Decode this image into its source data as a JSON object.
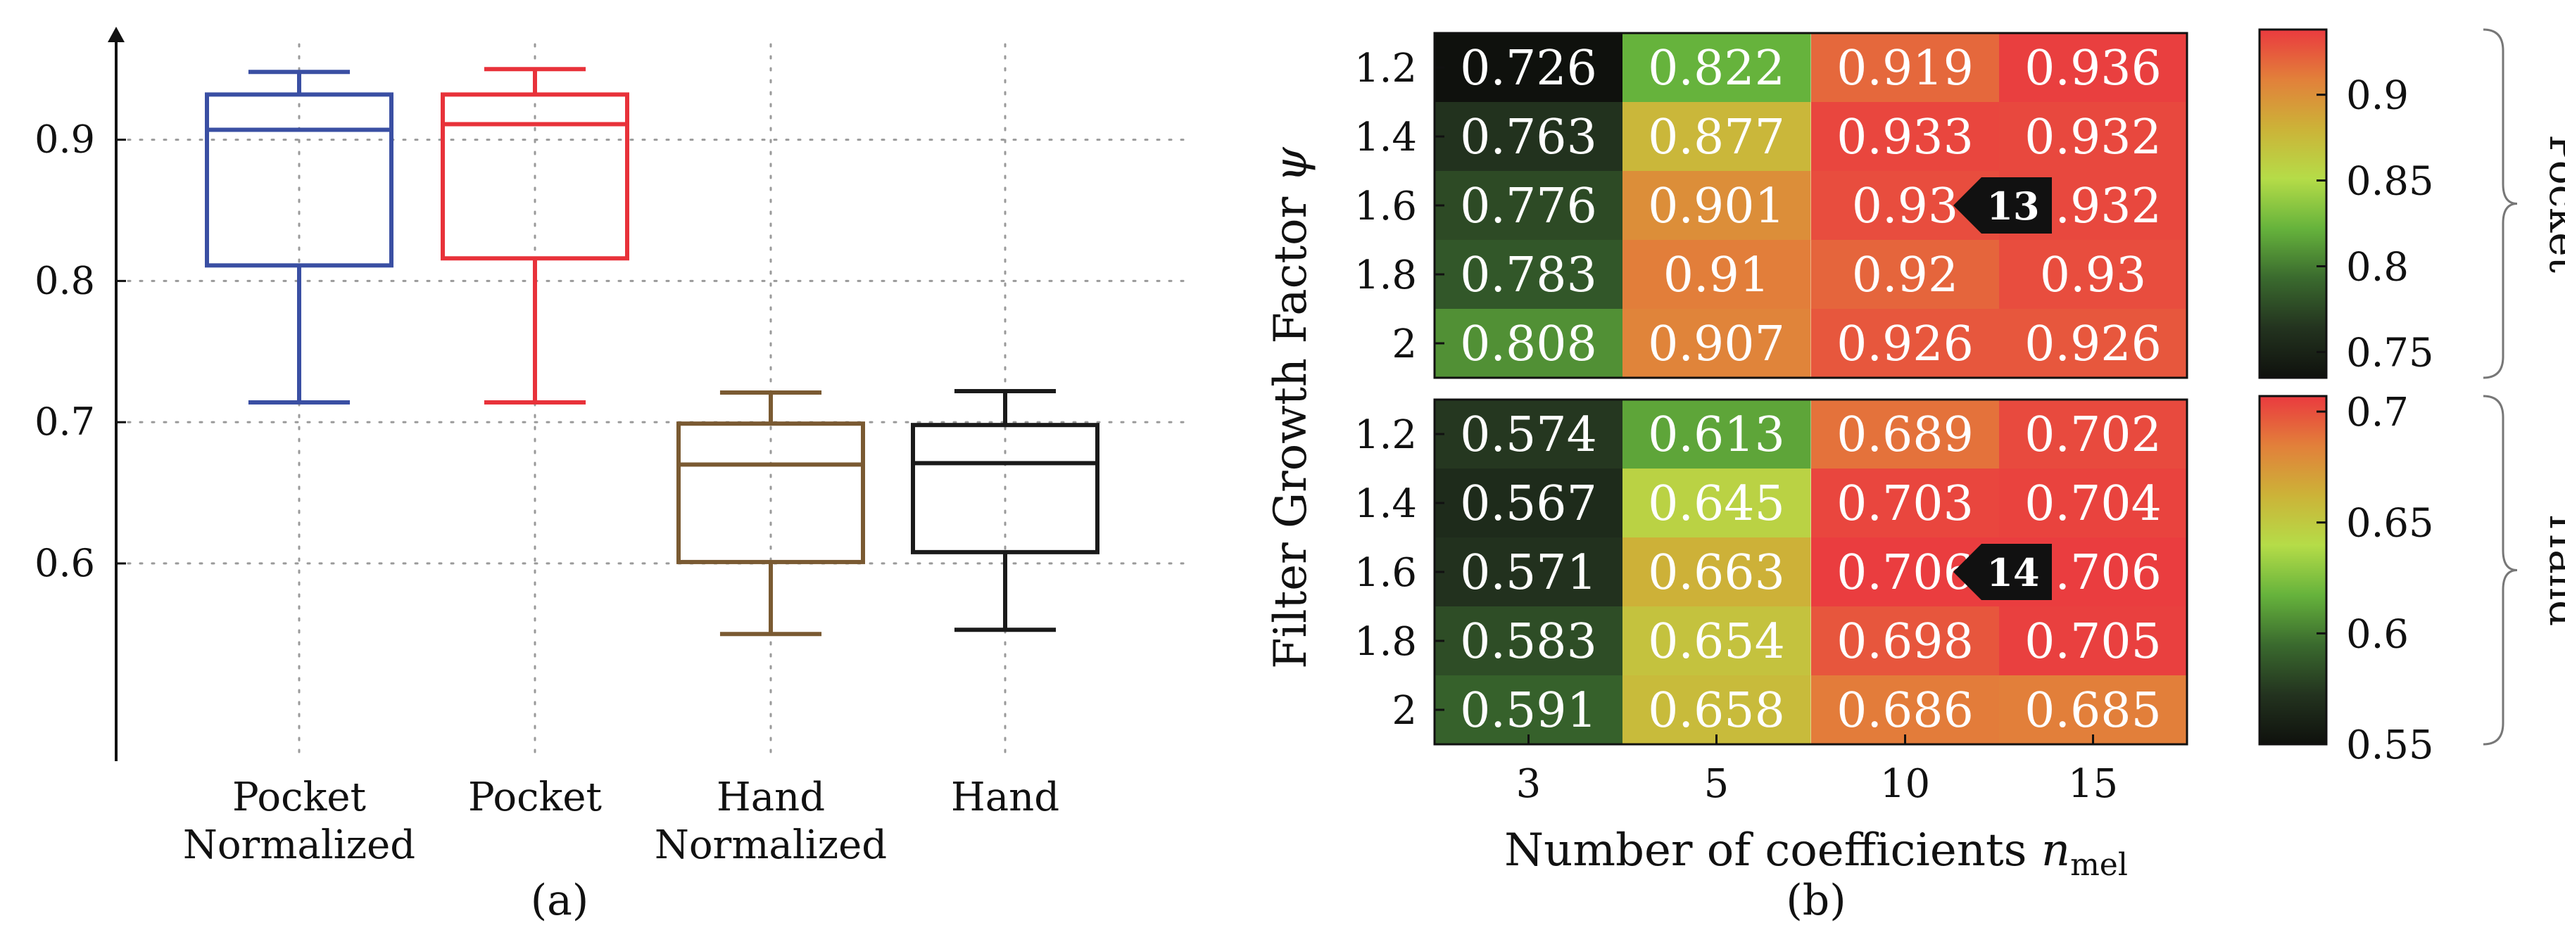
{
  "chart_data": [
    {
      "type": "box",
      "panel_label": "(a)",
      "yticks": [
        0.6,
        0.7,
        0.8,
        0.9
      ],
      "ylim": [
        0.46,
        0.98
      ],
      "categories": [
        {
          "label_lines": [
            "Pocket",
            "Normalized"
          ],
          "color": "#3a4fa3",
          "whisker_low": 0.714,
          "q1": 0.811,
          "median": 0.907,
          "q3": 0.932,
          "whisker_high": 0.948
        },
        {
          "label_lines": [
            "Pocket"
          ],
          "color": "#e8323a",
          "whisker_low": 0.714,
          "q1": 0.816,
          "median": 0.911,
          "q3": 0.932,
          "whisker_high": 0.95
        },
        {
          "label_lines": [
            "Hand",
            "Normalized"
          ],
          "color": "#7a5a32",
          "whisker_low": 0.55,
          "q1": 0.601,
          "median": 0.67,
          "q3": 0.699,
          "whisker_high": 0.721
        },
        {
          "label_lines": [
            "Hand"
          ],
          "color": "#1a1a1a",
          "whisker_low": 0.553,
          "q1": 0.608,
          "median": 0.671,
          "q3": 0.698,
          "whisker_high": 0.722
        }
      ]
    },
    {
      "type": "heatmap",
      "panel_label": "(b)",
      "xlabel_main": "Number of coefficients ",
      "xlabel_var": "n",
      "xlabel_sub": "mel",
      "ylabel_main": "Filter Growth Factor ",
      "ylabel_var": "ψ",
      "x_categories": [
        "3",
        "5",
        "10",
        "15"
      ],
      "y_categories": [
        "1.2",
        "1.4",
        "1.6",
        "1.8",
        "2"
      ],
      "panels": [
        {
          "name": "Pocket",
          "values": [
            [
              0.726,
              0.822,
              0.919,
              0.936
            ],
            [
              0.763,
              0.877,
              0.933,
              0.932
            ],
            [
              0.776,
              0.901,
              0.93,
              0.932
            ],
            [
              0.783,
              0.91,
              0.92,
              0.93
            ],
            [
              0.808,
              0.907,
              0.926,
              0.926
            ]
          ],
          "color_range": [
            0.735,
            0.938
          ],
          "colorbar_ticks": [
            "0.9",
            "0.85",
            "0.8",
            "0.75"
          ],
          "colorbar_tick_values": [
            0.9,
            0.85,
            0.8,
            0.75
          ],
          "marker": {
            "label": "13",
            "row": 2,
            "col": 2
          }
        },
        {
          "name": "Hand",
          "values": [
            [
              0.574,
              0.613,
              0.689,
              0.702
            ],
            [
              0.567,
              0.645,
              0.703,
              0.704
            ],
            [
              0.571,
              0.663,
              0.706,
              0.706
            ],
            [
              0.583,
              0.654,
              0.698,
              0.705
            ],
            [
              0.591,
              0.658,
              0.686,
              0.685
            ]
          ],
          "color_range": [
            0.55,
            0.707
          ],
          "colorbar_ticks": [
            "0.7",
            "0.65",
            "0.6",
            "0.55"
          ],
          "colorbar_tick_values": [
            0.7,
            0.65,
            0.6,
            0.55
          ],
          "marker": {
            "label": "14",
            "row": 2,
            "col": 2
          }
        }
      ],
      "colorscale": [
        "#0f110d",
        "#23331f",
        "#3a6a2e",
        "#66b33c",
        "#b5dc48",
        "#ccb338",
        "#e2803a",
        "#ea3a3f"
      ]
    }
  ]
}
